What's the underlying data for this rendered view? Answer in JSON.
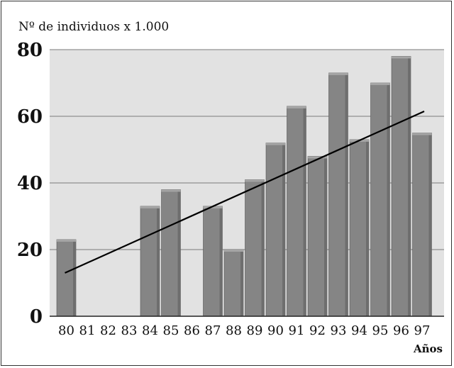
{
  "chart_data": {
    "type": "bar",
    "ylabel": "Nº de individuos x 1.000",
    "xlabel": "Años",
    "categories": [
      "80",
      "81",
      "82",
      "83",
      "84",
      "85",
      "86",
      "87",
      "88",
      "89",
      "90",
      "91",
      "92",
      "93",
      "94",
      "95",
      "96",
      "97"
    ],
    "values": [
      23,
      null,
      null,
      null,
      33,
      38,
      null,
      33,
      20,
      41,
      52,
      63,
      48,
      73,
      53,
      70,
      78,
      55
    ],
    "ylim": [
      0,
      80
    ],
    "yticks": [
      "0",
      "20",
      "40",
      "60",
      "80"
    ],
    "grid": true,
    "trendline": {
      "start": 13,
      "end": 61.5
    },
    "colors": {
      "bar": "#858585",
      "bar_shade": "#6e6e6e",
      "bar_top": "#a5a5a5",
      "plot_bg": "#e2e2e2",
      "grid": "#7a7a7a",
      "trend": "#000000"
    }
  }
}
